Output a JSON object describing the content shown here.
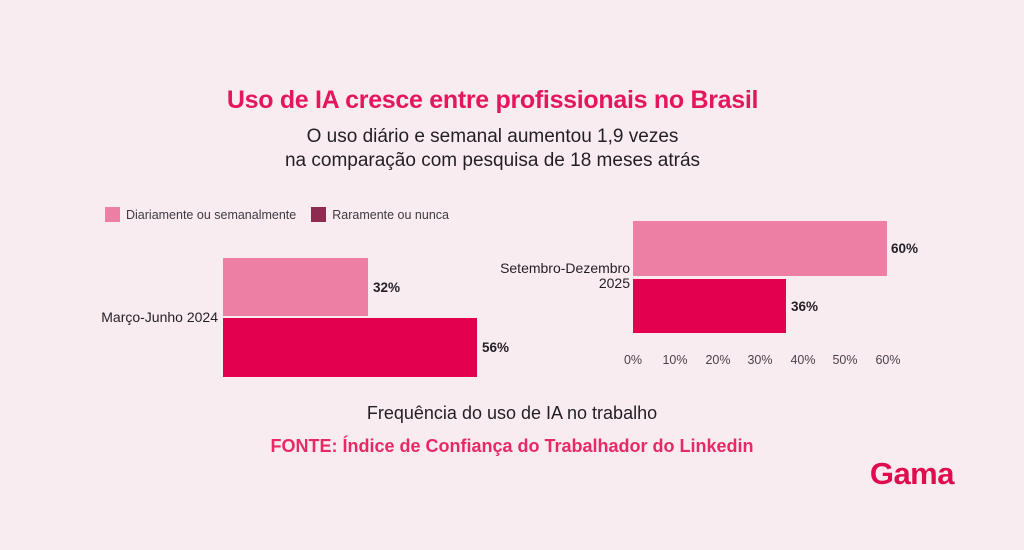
{
  "title": "Uso de IA cresce entre profissionais no Brasil",
  "subtitle_line1": "O uso diário e semanal aumentou 1,9 vezes",
  "subtitle_line2": "na comparação com pesquisa de 18 meses atrás",
  "legend": [
    {
      "label": "Diariamente ou semanalmente",
      "color": "#ee7fa4"
    },
    {
      "label": "Raramente ou nunca",
      "color": "#8e2b50"
    }
  ],
  "chart_data": {
    "type": "bar",
    "orientation": "horizontal",
    "title": "Uso de IA cresce entre profissionais no Brasil",
    "subtitle": "O uso diário e semanal aumentou 1,9 vezes na comparação com pesquisa de 18 meses atrás",
    "categories": [
      "Março-Junho 2024",
      "Setembro-Dezembro 2025"
    ],
    "category_display": {
      "left": [
        "Março-Junho 2024"
      ],
      "right_line1": "Setembro-Dezembro",
      "right_line2": "2025"
    },
    "series": [
      {
        "name": "Diariamente ou semanalmente",
        "color": "#ee7fa4",
        "values": [
          32,
          60
        ],
        "labels": [
          "32%",
          "60%"
        ]
      },
      {
        "name": "Raramente ou nunca",
        "color": "#e2004f",
        "values": [
          56,
          36
        ],
        "labels": [
          "56%",
          "36%"
        ]
      }
    ],
    "x_ticks": [
      "0%",
      "10%",
      "20%",
      "30%",
      "40%",
      "50%",
      "60%"
    ],
    "xlim": [
      0,
      60
    ],
    "grid": false,
    "legend_position": "top-left",
    "xlabel": "",
    "ylabel": ""
  },
  "caption": "Frequência do uso de IA no trabalho",
  "source": "FONTE: Índice de Confiança do Trabalhador do Linkedin",
  "brand": "Gama",
  "colors": {
    "background": "#f9ecf1",
    "title_pink": "#e4175e",
    "source_pink": "#e72a66",
    "brand_pink": "#e00d4e",
    "bar_pink": "#ee7fa4",
    "bar_crimson": "#e2004f",
    "legend_maroon": "#8e2b50",
    "text_dark": "#221e26"
  }
}
